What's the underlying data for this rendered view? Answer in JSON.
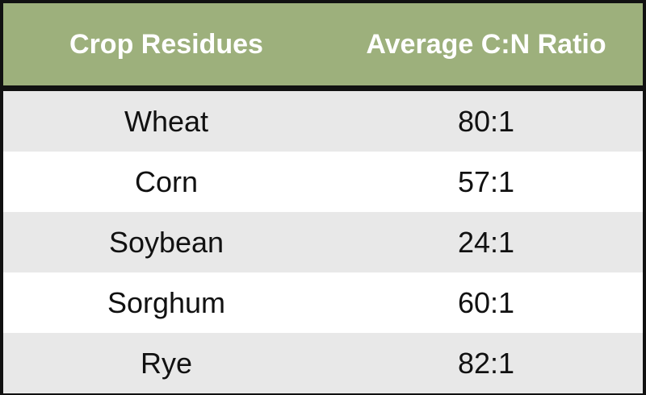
{
  "table": {
    "columns": [
      "Crop Residues",
      "Average C:N Ratio"
    ],
    "rows": [
      [
        "Wheat",
        "80:1"
      ],
      [
        "Corn",
        "57:1"
      ],
      [
        "Soybean",
        "24:1"
      ],
      [
        "Sorghum",
        "60:1"
      ],
      [
        "Rye",
        "82:1"
      ]
    ]
  }
}
